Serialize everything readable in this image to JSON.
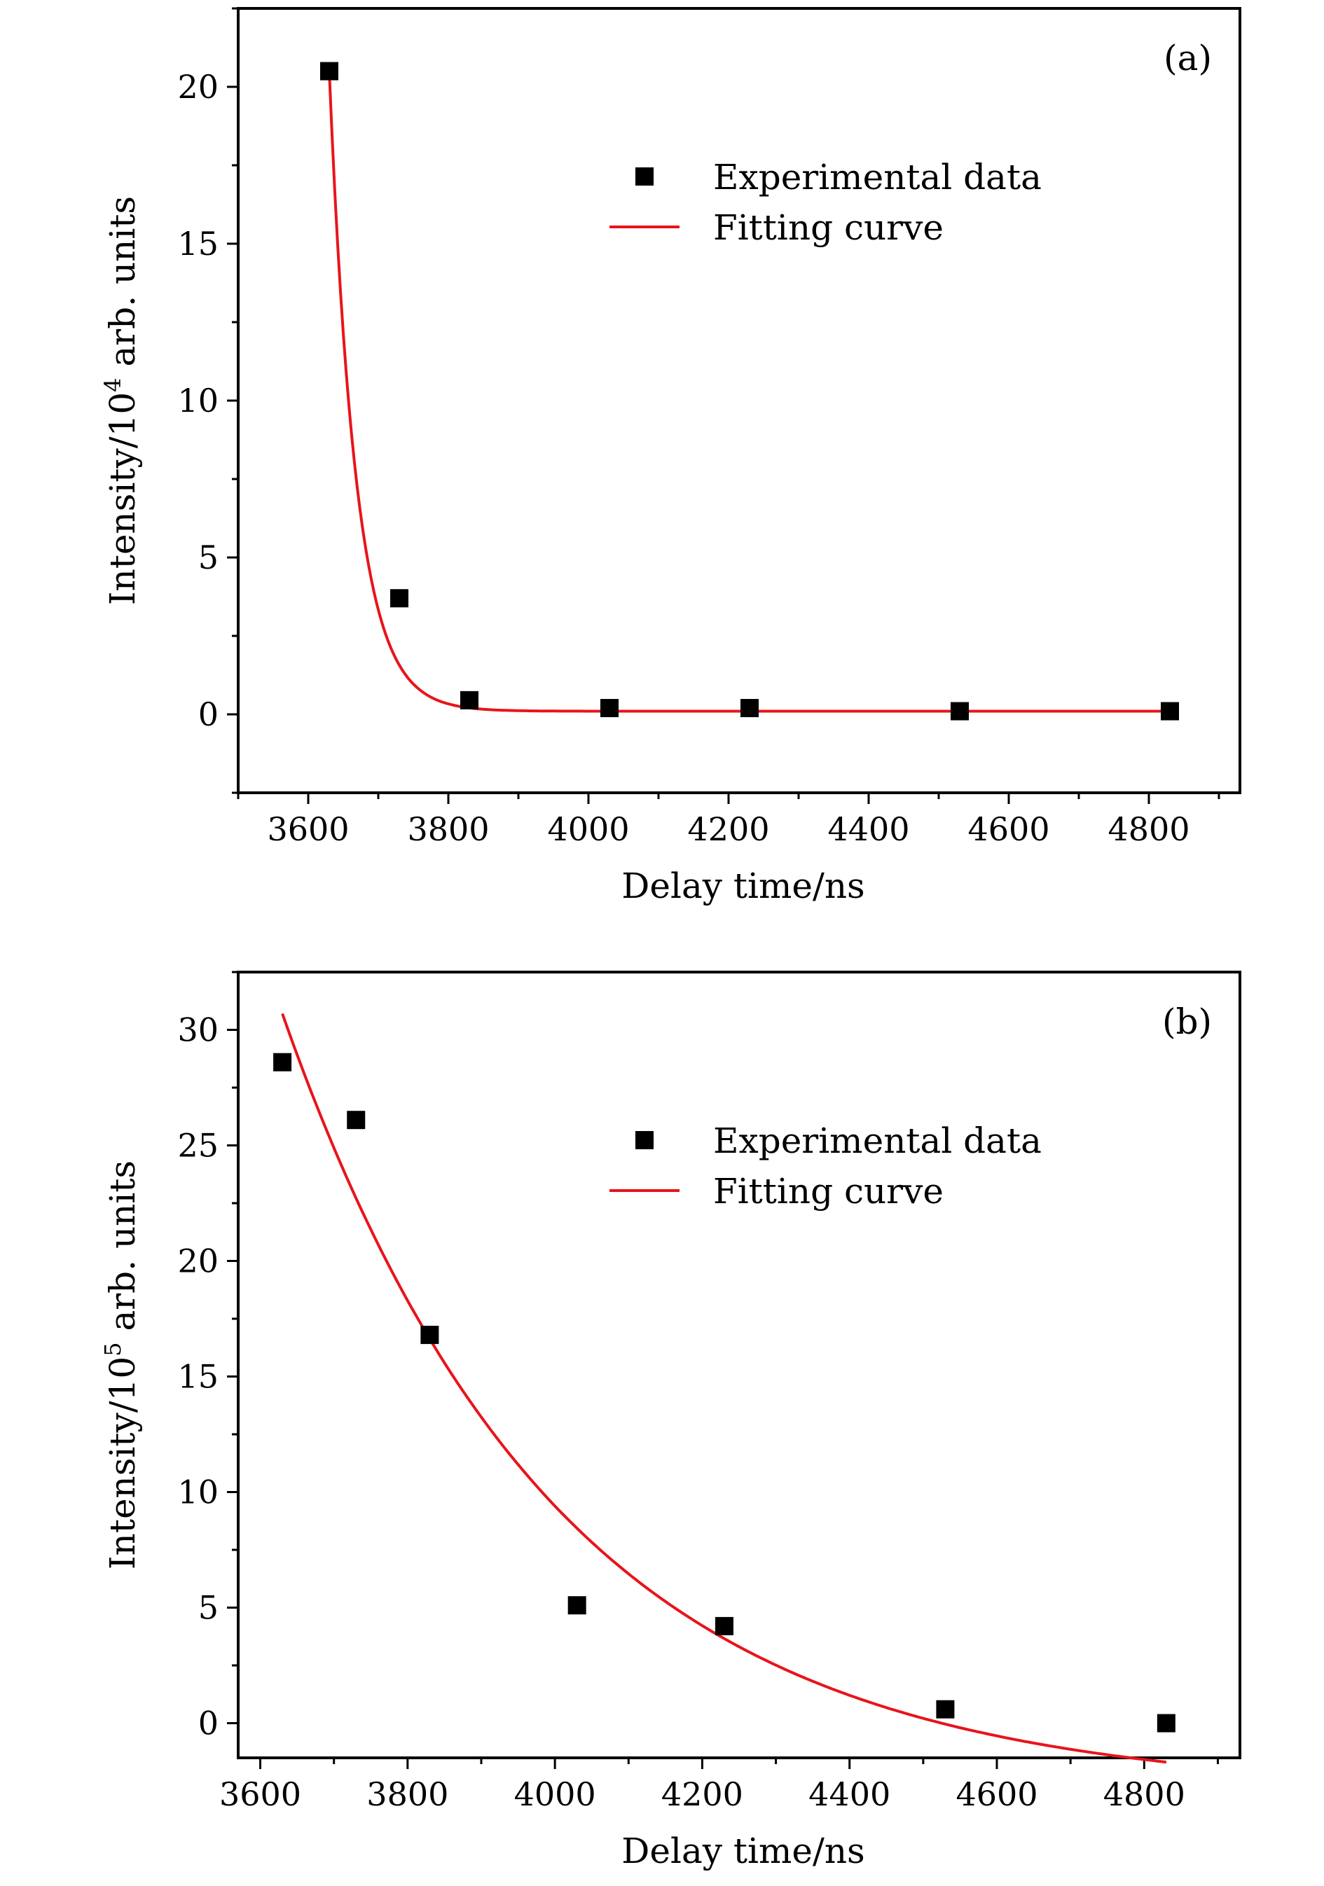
{
  "chart_data": [
    {
      "type": "scatter",
      "panel_label": "(a)",
      "xlabel": "Delay time/ns",
      "ylabel": {
        "prefix": "Intensity/10",
        "exponent": "4",
        "suffix": " arb. units"
      },
      "xlim": [
        3500,
        4930
      ],
      "ylim": [
        -2.5,
        22.5
      ],
      "xticks": [
        3600,
        3800,
        4000,
        4200,
        4400,
        4600,
        4800
      ],
      "yticks": [
        0,
        5,
        10,
        15,
        20
      ],
      "legend_position": "top-right",
      "series": [
        {
          "name": "Experimental data",
          "kind": "markers",
          "x": [
            3630,
            3730,
            3830,
            4030,
            4230,
            4530,
            4830
          ],
          "y": [
            20.5,
            3.7,
            0.45,
            0.2,
            0.2,
            0.1,
            0.1
          ]
        },
        {
          "name": "Fitting curve",
          "kind": "line",
          "model": {
            "type": "exp_decay",
            "y0": 0.1,
            "A": 20.4,
            "tau": 38,
            "x0": 3630
          },
          "x_range": [
            3630,
            4830
          ]
        }
      ],
      "colors": {
        "markers": "#000000",
        "line": "#e8141b"
      }
    },
    {
      "type": "scatter",
      "panel_label": "(b)",
      "xlabel": "Delay time/ns",
      "ylabel": {
        "prefix": "Intensity/10",
        "exponent": "5",
        "suffix": " arb. units"
      },
      "xlim": [
        3570,
        4930
      ],
      "ylim": [
        -1.5,
        32.5
      ],
      "xticks": [
        3600,
        3800,
        4000,
        4200,
        4400,
        4600,
        4800
      ],
      "yticks": [
        0,
        5,
        10,
        15,
        20,
        25,
        30
      ],
      "legend_position": "top-right",
      "series": [
        {
          "name": "Experimental data",
          "kind": "markers",
          "x": [
            3630,
            3730,
            3830,
            4030,
            4230,
            4530,
            4830
          ],
          "y": [
            28.6,
            26.1,
            16.8,
            5.1,
            4.2,
            0.6,
            0.0
          ]
        },
        {
          "name": "Fitting curve",
          "kind": "line",
          "model": {
            "type": "exp_decay",
            "y0": -3.0,
            "A": 33.7,
            "tau": 370,
            "x0": 3630
          },
          "x_range": [
            3630,
            4830
          ]
        }
      ],
      "colors": {
        "markers": "#000000",
        "line": "#e8141b"
      }
    }
  ]
}
